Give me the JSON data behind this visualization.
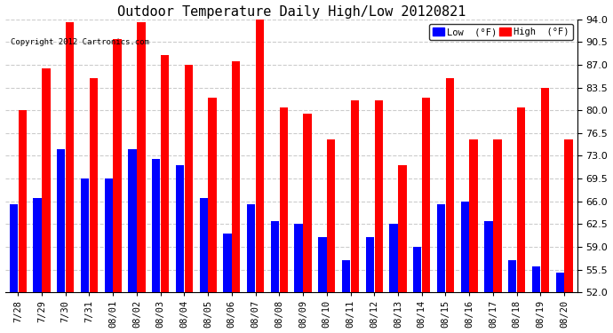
{
  "title": "Outdoor Temperature Daily High/Low 20120821",
  "copyright": "Copyright 2012 Cartronics.com",
  "dates": [
    "7/28",
    "7/29",
    "7/30",
    "7/31",
    "08/01",
    "08/02",
    "08/03",
    "08/04",
    "08/05",
    "08/06",
    "08/07",
    "08/08",
    "08/09",
    "08/10",
    "08/11",
    "08/12",
    "08/13",
    "08/14",
    "08/15",
    "08/16",
    "08/17",
    "08/18",
    "08/19",
    "08/20"
  ],
  "highs": [
    80.0,
    86.5,
    93.5,
    85.0,
    91.0,
    93.5,
    88.5,
    87.0,
    82.0,
    87.5,
    94.0,
    80.5,
    79.5,
    75.5,
    81.5,
    81.5,
    71.5,
    82.0,
    85.0,
    75.5,
    75.5,
    80.5,
    83.5,
    75.5
  ],
  "lows": [
    65.5,
    66.5,
    74.0,
    69.5,
    69.5,
    74.0,
    72.5,
    71.5,
    66.5,
    61.0,
    65.5,
    63.0,
    62.5,
    60.5,
    57.0,
    60.5,
    62.5,
    59.0,
    65.5,
    66.0,
    63.0,
    57.0,
    56.0,
    55.0
  ],
  "high_color": "#ff0000",
  "low_color": "#0000ff",
  "bg_color": "#ffffff",
  "ylim_min": 52.0,
  "ylim_max": 94.0,
  "yticks": [
    52.0,
    55.5,
    59.0,
    62.5,
    66.0,
    69.5,
    73.0,
    76.5,
    80.0,
    83.5,
    87.0,
    90.5,
    94.0
  ],
  "legend_low_label": "Low  (°F)",
  "legend_high_label": "High  (°F)",
  "bar_width": 0.35,
  "baseline": 52.0
}
